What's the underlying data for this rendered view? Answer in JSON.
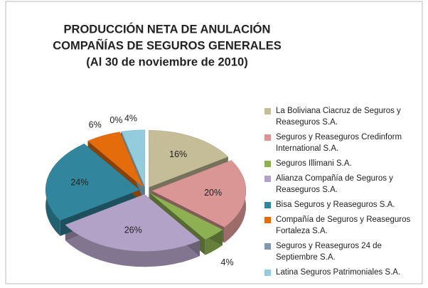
{
  "chart_data": {
    "type": "pie",
    "title": [
      "PRODUCCIÓN NETA DE ANULACIÓN",
      "COMPAÑÍAS DE SEGUROS GENERALES",
      "(Al 30 de noviembre de 2010)"
    ],
    "categories": [
      "La Boliviana Ciacruz de Seguros y Reaseguros S.A.",
      "Seguros y Reaseguros Credinform International S.A.",
      "Seguros Illimani S.A.",
      "Alianza Compañía de Seguros y Reaseguros S.A.",
      "Bisa Seguros y Reaseguros S.A.",
      "Compañía de Seguros y Reaseguros Fortaleza S.A.",
      "Seguros y Reaseguros 24 de Septiembre S.A.",
      "Latina Seguros Patrimoniales S.A."
    ],
    "values": [
      16,
      20,
      4,
      26,
      24,
      6,
      0,
      4
    ],
    "value_labels": [
      "16%",
      "20%",
      "4%",
      "26%",
      "24%",
      "6%",
      "0%",
      "4%"
    ],
    "colors": [
      "#c4bd97",
      "#d99694",
      "#8db052",
      "#b3a2c7",
      "#31859c",
      "#e46c0a",
      "#8497b0",
      "#93cddd"
    ]
  }
}
